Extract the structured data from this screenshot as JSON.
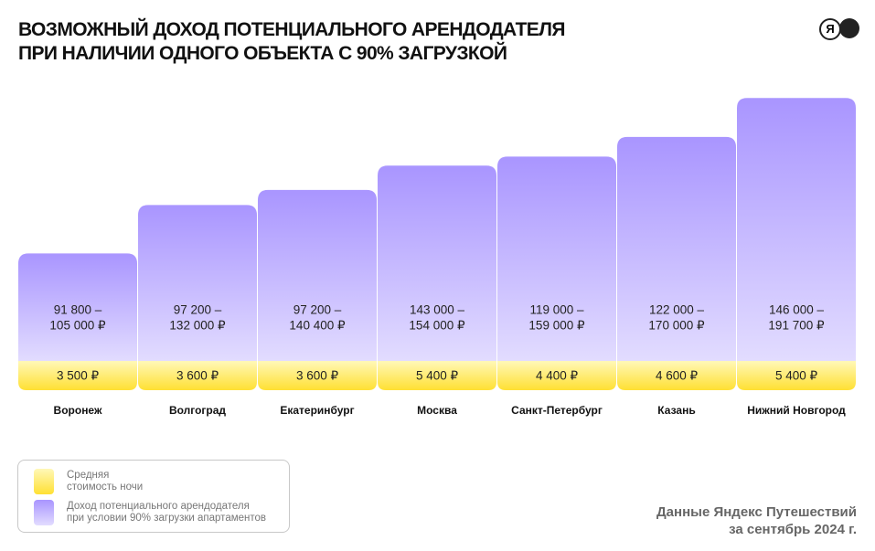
{
  "chart_data": {
    "type": "range-bar",
    "title": "ВОЗМОЖНЫЙ ДОХОД ПОТЕНЦИАЛЬНОГО АРЕНДОДАТЕЛЯ\nПРИ НАЛИЧИИ ОДНОГО ОБЪЕКТА С 90% ЗАГРУЗКОЙ",
    "logo": "Я",
    "categories": [
      "Воронеж",
      "Волгоград",
      "Екатеринбург",
      "Москва",
      "Санкт-Петербург",
      "Казань",
      "Нижний Новгород"
    ],
    "series": [
      {
        "name": "Средняя\nстоимость ночи",
        "color": "#ffe84d",
        "values": [
          3500,
          3600,
          3600,
          5400,
          4400,
          4600,
          5400
        ],
        "value_labels": [
          "3 500 ₽",
          "3 600 ₽",
          "3 600 ₽",
          "5 400 ₽",
          "4 400 ₽",
          "4 600 ₽",
          "5 400 ₽"
        ]
      },
      {
        "name": "Доход потенциального арендодателя\nпри условии 90% загрузки апартаментов",
        "color": "#a995ff",
        "low": [
          91800,
          97200,
          97200,
          143000,
          119000,
          122000,
          146000
        ],
        "low_labels": [
          "91 800 –",
          "97 200 –",
          "97 200 –",
          "143 000 –",
          "119 000 –",
          "122 000 –",
          "146 000 –"
        ],
        "values": [
          105000,
          132000,
          140400,
          154000,
          159000,
          170000,
          191700
        ],
        "value_labels": [
          "105 000 ₽",
          "132 000 ₽",
          "140 400 ₽",
          "154 000 ₽",
          "159 000 ₽",
          "170 000 ₽",
          "191 700 ₽"
        ]
      }
    ],
    "ylim": [
      45000,
      200000
    ],
    "source": "Данные Яндекс Путешествий\nза сентябрь 2024 г."
  }
}
